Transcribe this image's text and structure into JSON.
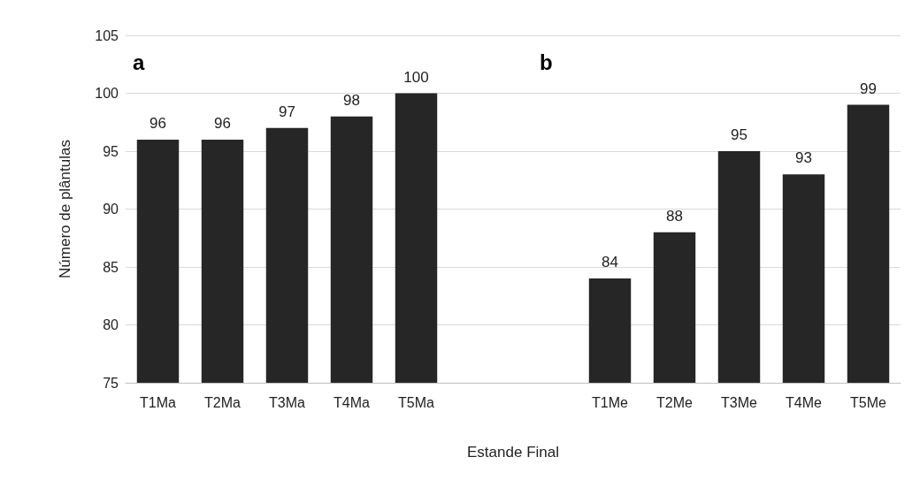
{
  "chart_data": {
    "type": "bar",
    "xlabel": "Estande Final",
    "ylabel": "Número de plântulas",
    "categories": [
      "T1Ma",
      "T2Ma",
      "T3Ma",
      "T4Ma",
      "T5Ma",
      null,
      null,
      "T1Me",
      "T2Me",
      "T3Me",
      "T4Me",
      "T5Me"
    ],
    "values": [
      96,
      96,
      97,
      98,
      100,
      null,
      null,
      84,
      88,
      95,
      93,
      99
    ],
    "color": "#262626",
    "ylim": [
      75,
      105
    ],
    "yticks": [
      75,
      80,
      85,
      90,
      95,
      100,
      105
    ],
    "grid": "y",
    "data_labels": true,
    "annotations": [
      "a",
      "b"
    ]
  }
}
